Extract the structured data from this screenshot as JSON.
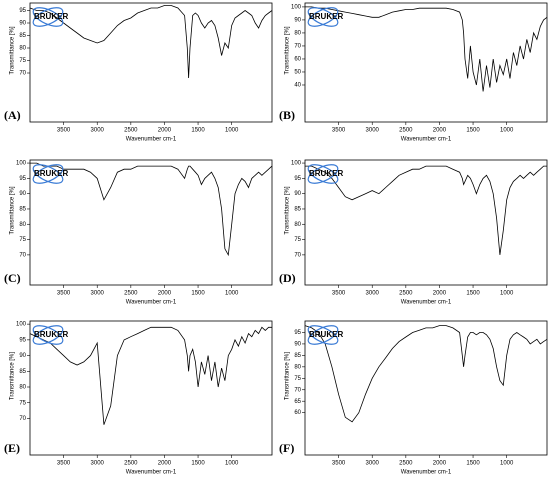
{
  "chart_data": [
    {
      "type": "line",
      "label": "(A)",
      "logo": "BRUKER",
      "y_label": "Transmittance [%]",
      "x_label": "Wavenumber cm-1",
      "xlim": [
        4000,
        400
      ],
      "ylim": [
        60,
        98
      ],
      "xticks": [
        3500,
        3000,
        2500,
        2000,
        1500,
        1000
      ],
      "yticks": [
        95,
        90,
        85,
        80,
        75,
        70
      ],
      "series": [
        {
          "color": "#000000",
          "x": [
            4000,
            3900,
            3800,
            3700,
            3600,
            3500,
            3400,
            3300,
            3200,
            3100,
            3000,
            2900,
            2800,
            2700,
            2600,
            2500,
            2400,
            2300,
            2200,
            2100,
            2000,
            1900,
            1800,
            1700,
            1660,
            1640,
            1620,
            1580,
            1540,
            1500,
            1450,
            1400,
            1350,
            1300,
            1250,
            1200,
            1150,
            1100,
            1050,
            1000,
            950,
            900,
            850,
            800,
            750,
            700,
            650,
            600,
            550,
            500,
            450,
            400
          ],
          "values": [
            96,
            95,
            95,
            94,
            92,
            90,
            88,
            86,
            84,
            83,
            82,
            83,
            86,
            89,
            91,
            92,
            94,
            95,
            96,
            96,
            97,
            97,
            96,
            93,
            80,
            68,
            80,
            93,
            94,
            93,
            90,
            88,
            90,
            91,
            89,
            84,
            77,
            82,
            80,
            89,
            92,
            93,
            94,
            95,
            94,
            93,
            90,
            88,
            91,
            93,
            94,
            95
          ]
        }
      ]
    },
    {
      "type": "line",
      "label": "(B)",
      "logo": "BRUKER",
      "y_label": "Transmittance [%]",
      "x_label": "Wavenumber cm-1",
      "xlim": [
        4000,
        400
      ],
      "ylim": [
        30,
        103
      ],
      "xticks": [
        3500,
        3000,
        2500,
        2000,
        1500,
        1000
      ],
      "yticks": [
        100,
        90,
        80,
        70,
        60,
        50,
        40
      ],
      "series": [
        {
          "color": "#000000",
          "x": [
            4000,
            3900,
            3800,
            3700,
            3600,
            3500,
            3400,
            3300,
            3200,
            3100,
            3000,
            2900,
            2800,
            2700,
            2600,
            2500,
            2400,
            2300,
            2200,
            2100,
            2000,
            1900,
            1800,
            1700,
            1660,
            1640,
            1620,
            1580,
            1540,
            1500,
            1450,
            1400,
            1350,
            1300,
            1250,
            1200,
            1150,
            1100,
            1050,
            1000,
            950,
            900,
            850,
            800,
            750,
            700,
            650,
            600,
            550,
            500,
            450,
            400
          ],
          "values": [
            100,
            100,
            99,
            99,
            98,
            97,
            96,
            95,
            94,
            93,
            92,
            92,
            94,
            96,
            97,
            98,
            98,
            99,
            99,
            99,
            99,
            99,
            98,
            96,
            90,
            80,
            60,
            45,
            70,
            50,
            40,
            60,
            35,
            55,
            38,
            60,
            42,
            55,
            48,
            60,
            45,
            65,
            55,
            70,
            60,
            75,
            65,
            80,
            75,
            85,
            90,
            92
          ]
        }
      ]
    },
    {
      "type": "line",
      "label": "(C)",
      "logo": "BRUKER",
      "y_label": "Transmittance [%]",
      "x_label": "Wavenumber cm-1",
      "xlim": [
        4000,
        400
      ],
      "ylim": [
        68,
        101
      ],
      "xticks": [
        3500,
        3000,
        2500,
        2000,
        1500,
        1000
      ],
      "yticks": [
        100,
        95,
        90,
        85,
        80,
        75,
        70
      ],
      "series": [
        {
          "color": "#000000",
          "x": [
            4000,
            3900,
            3800,
            3700,
            3600,
            3500,
            3400,
            3300,
            3200,
            3100,
            3000,
            2900,
            2800,
            2700,
            2600,
            2500,
            2400,
            2300,
            2200,
            2100,
            2000,
            1900,
            1800,
            1700,
            1660,
            1640,
            1620,
            1580,
            1540,
            1500,
            1450,
            1400,
            1350,
            1300,
            1250,
            1200,
            1150,
            1100,
            1050,
            1000,
            950,
            900,
            850,
            800,
            750,
            700,
            650,
            600,
            550,
            500,
            450,
            400
          ],
          "values": [
            100,
            100,
            99,
            99,
            99,
            98,
            98,
            98,
            98,
            97,
            95,
            88,
            92,
            97,
            98,
            98,
            99,
            99,
            99,
            99,
            99,
            99,
            98,
            95,
            98,
            99,
            99,
            98,
            97,
            96,
            93,
            95,
            96,
            97,
            95,
            92,
            85,
            72,
            70,
            80,
            90,
            93,
            95,
            94,
            92,
            95,
            96,
            97,
            96,
            97,
            98,
            99
          ]
        }
      ]
    },
    {
      "type": "line",
      "label": "(D)",
      "logo": "BRUKER",
      "y_label": "Transmittance [%]",
      "x_label": "Wavenumber cm-1",
      "xlim": [
        4000,
        400
      ],
      "ylim": [
        68,
        101
      ],
      "xticks": [
        3500,
        3000,
        2500,
        2000,
        1500,
        1000
      ],
      "yticks": [
        100,
        95,
        90,
        85,
        80,
        75,
        70
      ],
      "series": [
        {
          "color": "#000000",
          "x": [
            4000,
            3900,
            3800,
            3700,
            3600,
            3500,
            3400,
            3300,
            3200,
            3100,
            3000,
            2900,
            2800,
            2700,
            2600,
            2500,
            2400,
            2300,
            2200,
            2100,
            2000,
            1900,
            1800,
            1700,
            1660,
            1640,
            1620,
            1580,
            1540,
            1500,
            1450,
            1400,
            1350,
            1300,
            1250,
            1200,
            1150,
            1100,
            1050,
            1000,
            950,
            900,
            850,
            800,
            750,
            700,
            650,
            600,
            550,
            500,
            450,
            400
          ],
          "values": [
            99,
            99,
            98,
            97,
            95,
            92,
            89,
            88,
            89,
            90,
            91,
            90,
            92,
            94,
            96,
            97,
            98,
            98,
            99,
            99,
            99,
            99,
            98,
            97,
            95,
            93,
            94,
            96,
            95,
            93,
            90,
            93,
            95,
            96,
            94,
            90,
            82,
            70,
            78,
            88,
            92,
            94,
            95,
            96,
            95,
            96,
            97,
            96,
            97,
            98,
            99,
            99
          ]
        }
      ]
    },
    {
      "type": "line",
      "label": "(E)",
      "logo": "BRUKER",
      "y_label": "Transmittance [%]",
      "x_label": "Wavenumber cm-1",
      "xlim": [
        4000,
        400
      ],
      "ylim": [
        66,
        101
      ],
      "xticks": [
        3500,
        3000,
        2500,
        2000,
        1500,
        1000
      ],
      "yticks": [
        100,
        95,
        90,
        85,
        80,
        75,
        70
      ],
      "series": [
        {
          "color": "#000000",
          "x": [
            4000,
            3900,
            3800,
            3700,
            3600,
            3500,
            3400,
            3300,
            3200,
            3100,
            3000,
            2900,
            2800,
            2700,
            2600,
            2500,
            2400,
            2300,
            2200,
            2100,
            2000,
            1900,
            1800,
            1700,
            1660,
            1640,
            1620,
            1580,
            1540,
            1500,
            1450,
            1400,
            1350,
            1300,
            1250,
            1200,
            1150,
            1100,
            1050,
            1000,
            950,
            900,
            850,
            800,
            750,
            700,
            650,
            600,
            550,
            500,
            450,
            400
          ],
          "values": [
            97,
            96,
            95,
            94,
            92,
            90,
            88,
            87,
            88,
            90,
            94,
            68,
            74,
            90,
            95,
            96,
            97,
            98,
            99,
            99,
            99,
            99,
            98,
            95,
            90,
            85,
            90,
            92,
            88,
            80,
            88,
            84,
            90,
            82,
            88,
            80,
            86,
            82,
            90,
            92,
            95,
            93,
            96,
            94,
            97,
            96,
            98,
            97,
            99,
            98,
            99,
            99
          ]
        }
      ]
    },
    {
      "type": "line",
      "label": "(F)",
      "logo": "BRUKER",
      "y_label": "Transmittance [%]",
      "x_label": "Wavenumber cm-1",
      "xlim": [
        4000,
        400
      ],
      "ylim": [
        52,
        100
      ],
      "xticks": [
        3500,
        3000,
        2500,
        2000,
        1500,
        1000
      ],
      "yticks": [
        95,
        90,
        85,
        80,
        75,
        70,
        65,
        60
      ],
      "series": [
        {
          "color": "#000000",
          "x": [
            4000,
            3900,
            3800,
            3700,
            3600,
            3500,
            3400,
            3300,
            3200,
            3100,
            3000,
            2900,
            2800,
            2700,
            2600,
            2500,
            2400,
            2300,
            2200,
            2100,
            2000,
            1900,
            1800,
            1700,
            1660,
            1640,
            1620,
            1580,
            1540,
            1500,
            1450,
            1400,
            1350,
            1300,
            1250,
            1200,
            1150,
            1100,
            1050,
            1000,
            950,
            900,
            850,
            800,
            750,
            700,
            650,
            600,
            550,
            500,
            450,
            400
          ],
          "values": [
            98,
            97,
            95,
            90,
            80,
            68,
            58,
            56,
            60,
            68,
            75,
            80,
            84,
            88,
            91,
            93,
            95,
            96,
            97,
            97,
            98,
            98,
            97,
            95,
            85,
            80,
            85,
            93,
            95,
            95,
            94,
            95,
            95,
            94,
            92,
            88,
            80,
            74,
            72,
            85,
            92,
            94,
            95,
            94,
            93,
            92,
            90,
            91,
            92,
            90,
            91,
            92
          ]
        }
      ]
    }
  ]
}
